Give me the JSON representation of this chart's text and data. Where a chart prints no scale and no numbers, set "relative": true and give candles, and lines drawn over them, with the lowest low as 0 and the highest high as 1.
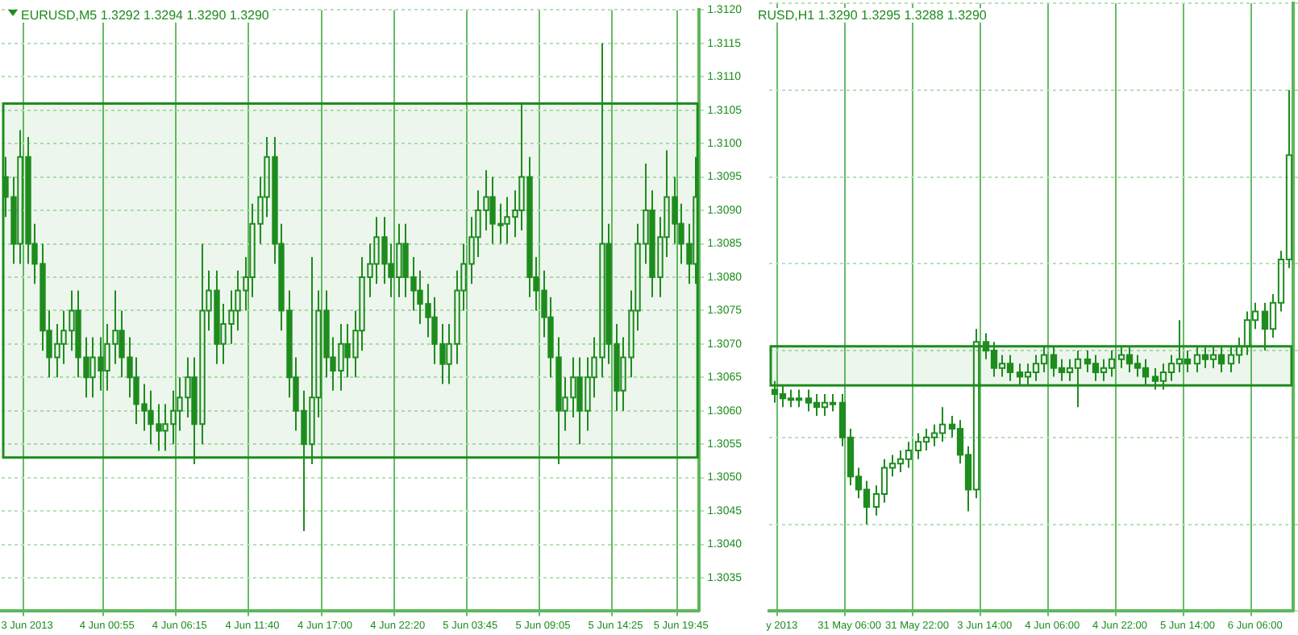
{
  "chart_data": [
    {
      "type": "candlestick",
      "title": "EURUSD,M5 1.3292 1.3294 1.3290 1.3290",
      "color": "#1e8c1e",
      "grid": true,
      "categories": [
        null,
        null,
        null,
        "3 Jun 2013",
        null,
        null,
        null,
        null,
        null,
        null,
        null,
        null,
        null,
        null,
        "4 Jun 00:55",
        null,
        null,
        null,
        null,
        null,
        null,
        null,
        null,
        null,
        "4 Jun 06:15",
        null,
        null,
        null,
        null,
        null,
        null,
        null,
        null,
        null,
        "4 Jun 11:40",
        null,
        null,
        null,
        null,
        null,
        null,
        null,
        null,
        null,
        "4 Jun 17:00",
        null,
        null,
        null,
        null,
        null,
        null,
        null,
        null,
        null,
        "4 Jun 22:20",
        null,
        null,
        null,
        null,
        null,
        null,
        null,
        null,
        null,
        "5 Jun 03:45",
        null,
        null,
        null,
        null,
        null,
        null,
        null,
        null,
        null,
        "5 Jun 09:05",
        null,
        null,
        null,
        null,
        null,
        null,
        null,
        null,
        null,
        "5 Jun 14:25",
        null,
        null,
        null,
        null,
        null,
        null,
        null,
        null,
        "5 Jun 19:45",
        null,
        null
      ],
      "ohlc": [
        [
          1.3095,
          1.3098,
          1.3089,
          1.3092
        ],
        [
          1.3092,
          1.3095,
          1.3082,
          1.3085
        ],
        [
          1.3085,
          1.3102,
          1.3082,
          1.3098
        ],
        [
          1.3098,
          1.3101,
          1.3082,
          1.3085
        ],
        [
          1.3085,
          1.3088,
          1.3079,
          1.3082
        ],
        [
          1.3082,
          1.3085,
          1.3069,
          1.3072
        ],
        [
          1.3072,
          1.3075,
          1.3065,
          1.3068
        ],
        [
          1.3068,
          1.3073,
          1.3065,
          1.307
        ],
        [
          1.307,
          1.3075,
          1.3067,
          1.3072
        ],
        [
          1.3072,
          1.3078,
          1.3069,
          1.3075
        ],
        [
          1.3075,
          1.3078,
          1.3065,
          1.3068
        ],
        [
          1.3068,
          1.3071,
          1.3062,
          1.3065
        ],
        [
          1.3065,
          1.3071,
          1.3062,
          1.3068
        ],
        [
          1.3068,
          1.3071,
          1.3063,
          1.3066
        ],
        [
          1.3066,
          1.3073,
          1.3063,
          1.307
        ],
        [
          1.307,
          1.3078,
          1.3067,
          1.3072
        ],
        [
          1.3072,
          1.3075,
          1.3065,
          1.3068
        ],
        [
          1.3068,
          1.3071,
          1.3062,
          1.3065
        ],
        [
          1.3065,
          1.3068,
          1.3058,
          1.3061
        ],
        [
          1.3061,
          1.3064,
          1.3057,
          1.306
        ],
        [
          1.306,
          1.3063,
          1.3055,
          1.3058
        ],
        [
          1.3058,
          1.3061,
          1.3054,
          1.3057
        ],
        [
          1.3057,
          1.3061,
          1.3054,
          1.3058
        ],
        [
          1.3058,
          1.3063,
          1.3055,
          1.306
        ],
        [
          1.306,
          1.3065,
          1.3057,
          1.3062
        ],
        [
          1.3062,
          1.3068,
          1.3059,
          1.3065
        ],
        [
          1.3065,
          1.3068,
          1.3052,
          1.3058
        ],
        [
          1.3058,
          1.3085,
          1.3055,
          1.3075
        ],
        [
          1.3075,
          1.3081,
          1.3072,
          1.3078
        ],
        [
          1.3078,
          1.3081,
          1.3067,
          1.307
        ],
        [
          1.307,
          1.3076,
          1.3067,
          1.3073
        ],
        [
          1.3073,
          1.3078,
          1.307,
          1.3075
        ],
        [
          1.3075,
          1.3081,
          1.3072,
          1.3078
        ],
        [
          1.3078,
          1.3083,
          1.3075,
          1.308
        ],
        [
          1.308,
          1.3091,
          1.3077,
          1.3088
        ],
        [
          1.3088,
          1.3095,
          1.3085,
          1.3092
        ],
        [
          1.3092,
          1.3101,
          1.3089,
          1.3098
        ],
        [
          1.3098,
          1.3101,
          1.3082,
          1.3085
        ],
        [
          1.3085,
          1.3088,
          1.3072,
          1.3075
        ],
        [
          1.3075,
          1.3078,
          1.3062,
          1.3065
        ],
        [
          1.3065,
          1.3068,
          1.3057,
          1.306
        ],
        [
          1.306,
          1.3063,
          1.3042,
          1.3055
        ],
        [
          1.3055,
          1.3083,
          1.3052,
          1.3062
        ],
        [
          1.3062,
          1.3078,
          1.3059,
          1.3075
        ],
        [
          1.3075,
          1.3078,
          1.3065,
          1.3068
        ],
        [
          1.3068,
          1.3071,
          1.3063,
          1.3066
        ],
        [
          1.3066,
          1.3073,
          1.3063,
          1.307
        ],
        [
          1.307,
          1.3073,
          1.3065,
          1.3068
        ],
        [
          1.3068,
          1.3075,
          1.3065,
          1.3072
        ],
        [
          1.3072,
          1.3083,
          1.3069,
          1.308
        ],
        [
          1.308,
          1.3085,
          1.3077,
          1.3082
        ],
        [
          1.3082,
          1.3089,
          1.3079,
          1.3086
        ],
        [
          1.3086,
          1.3089,
          1.3079,
          1.3082
        ],
        [
          1.3082,
          1.3085,
          1.3077,
          1.308
        ],
        [
          1.308,
          1.3088,
          1.3077,
          1.3085
        ],
        [
          1.3085,
          1.3088,
          1.3077,
          1.308
        ],
        [
          1.308,
          1.3083,
          1.3075,
          1.3078
        ],
        [
          1.3078,
          1.3081,
          1.3073,
          1.3076
        ],
        [
          1.3076,
          1.3079,
          1.3071,
          1.3074
        ],
        [
          1.3074,
          1.3077,
          1.3067,
          1.307
        ],
        [
          1.307,
          1.3073,
          1.3064,
          1.3067
        ],
        [
          1.3067,
          1.3073,
          1.3064,
          1.307
        ],
        [
          1.307,
          1.3081,
          1.3067,
          1.3078
        ],
        [
          1.3078,
          1.3085,
          1.3075,
          1.3082
        ],
        [
          1.3082,
          1.3089,
          1.3079,
          1.3086
        ],
        [
          1.3086,
          1.3093,
          1.3083,
          1.309
        ],
        [
          1.309,
          1.3096,
          1.3087,
          1.3092
        ],
        [
          1.3092,
          1.3095,
          1.3085,
          1.3088
        ],
        [
          1.3088,
          1.3091,
          1.3085,
          1.3088
        ],
        [
          1.3088,
          1.3092,
          1.3085,
          1.3089
        ],
        [
          1.3089,
          1.3093,
          1.3086,
          1.309
        ],
        [
          1.309,
          1.3106,
          1.3087,
          1.3095
        ],
        [
          1.3095,
          1.3098,
          1.3077,
          1.308
        ],
        [
          1.308,
          1.3083,
          1.3075,
          1.3078
        ],
        [
          1.3078,
          1.3081,
          1.3071,
          1.3074
        ],
        [
          1.3074,
          1.3077,
          1.3065,
          1.3068
        ],
        [
          1.3068,
          1.3071,
          1.3052,
          1.306
        ],
        [
          1.306,
          1.3065,
          1.3057,
          1.3062
        ],
        [
          1.3062,
          1.3068,
          1.3059,
          1.3065
        ],
        [
          1.3065,
          1.3068,
          1.3055,
          1.306
        ],
        [
          1.306,
          1.3068,
          1.3057,
          1.3065
        ],
        [
          1.3065,
          1.3071,
          1.3062,
          1.3068
        ],
        [
          1.3068,
          1.3115,
          1.3065,
          1.3085
        ],
        [
          1.3085,
          1.3088,
          1.3067,
          1.307
        ],
        [
          1.307,
          1.3073,
          1.306,
          1.3063
        ],
        [
          1.3063,
          1.3071,
          1.306,
          1.3068
        ],
        [
          1.3068,
          1.3078,
          1.3065,
          1.3075
        ],
        [
          1.3075,
          1.3088,
          1.3072,
          1.3085
        ],
        [
          1.3085,
          1.3097,
          1.3082,
          1.309
        ],
        [
          1.309,
          1.3093,
          1.3077,
          1.308
        ],
        [
          1.308,
          1.3089,
          1.3077,
          1.3086
        ],
        [
          1.3086,
          1.3099,
          1.3083,
          1.3092
        ],
        [
          1.3092,
          1.3095,
          1.3085,
          1.3088
        ],
        [
          1.3088,
          1.3091,
          1.3082,
          1.3085
        ],
        [
          1.3085,
          1.3088,
          1.3079,
          1.3082
        ],
        [
          1.3082,
          1.3098,
          1.3079,
          1.3092
        ]
      ],
      "ylim": [
        1.303,
        1.312
      ],
      "yticks": [
        1.3035,
        {
          "value": 1.304,
          "label": "1.3040"
        },
        1.3045,
        {
          "value": 1.305,
          "label": "1.3050"
        },
        1.3055,
        {
          "value": 1.306,
          "label": "1.3060"
        },
        1.3065,
        {
          "value": 1.307,
          "label": "1.3070"
        },
        1.3075,
        {
          "value": 1.308,
          "label": "1.3080"
        },
        1.3085,
        {
          "value": 1.309,
          "label": "1.3090"
        },
        1.3095,
        {
          "value": 1.31,
          "label": "1.3100"
        },
        1.3105,
        {
          "value": 1.311,
          "label": "1.3110"
        },
        1.3115,
        {
          "value": 1.312,
          "label": "1.3120"
        }
      ],
      "bands": [
        {
          "axis": "y",
          "from": 1.3053,
          "to": 1.3106,
          "color": "#1e8c1e"
        }
      ]
    },
    {
      "type": "candlestick",
      "title": "RUSD,H1 1.3290 1.3295 1.3288 1.3290",
      "color": "#1e8c1e",
      "grid": true,
      "relative": true,
      "categories": [
        null,
        "y 2013",
        null,
        null,
        null,
        null,
        null,
        null,
        null,
        "31 May 06:00",
        null,
        null,
        null,
        null,
        null,
        null,
        null,
        "31 May 22:00",
        null,
        null,
        null,
        null,
        null,
        null,
        null,
        "3 Jun 14:00",
        null,
        null,
        null,
        null,
        null,
        null,
        null,
        "4 Jun 06:00",
        null,
        null,
        null,
        null,
        null,
        null,
        null,
        "4 Jun 22:00",
        null,
        null,
        null,
        null,
        null,
        null,
        null,
        "5 Jun 14:00",
        null,
        null,
        null,
        null,
        null,
        null,
        null,
        "6 Jun 06:00",
        null,
        null,
        null,
        null
      ],
      "ohlc": [
        [
          0.31,
          0.33,
          0.28,
          0.3
        ],
        [
          0.3,
          0.32,
          0.27,
          0.29
        ],
        [
          0.29,
          0.31,
          0.27,
          0.29
        ],
        [
          0.29,
          0.31,
          0.27,
          0.29
        ],
        [
          0.29,
          0.31,
          0.26,
          0.28
        ],
        [
          0.28,
          0.3,
          0.25,
          0.27
        ],
        [
          0.27,
          0.3,
          0.25,
          0.28
        ],
        [
          0.28,
          0.3,
          0.26,
          0.28
        ],
        [
          0.28,
          0.3,
          0.18,
          0.2
        ],
        [
          0.2,
          0.22,
          0.09,
          0.11
        ],
        [
          0.11,
          0.13,
          0.06,
          0.08
        ],
        [
          0.08,
          0.1,
          0,
          0.04
        ],
        [
          0.04,
          0.09,
          0.02,
          0.07
        ],
        [
          0.07,
          0.15,
          0.05,
          0.13
        ],
        [
          0.13,
          0.16,
          0.11,
          0.14
        ],
        [
          0.14,
          0.17,
          0.12,
          0.15
        ],
        [
          0.15,
          0.19,
          0.13,
          0.17
        ],
        [
          0.17,
          0.21,
          0.15,
          0.19
        ],
        [
          0.19,
          0.22,
          0.17,
          0.2
        ],
        [
          0.2,
          0.23,
          0.18,
          0.21
        ],
        [
          0.21,
          0.27,
          0.19,
          0.23
        ],
        [
          0.23,
          0.25,
          0.2,
          0.22
        ],
        [
          0.22,
          0.24,
          0.14,
          0.16
        ],
        [
          0.16,
          0.18,
          0.03,
          0.08
        ],
        [
          0.08,
          0.45,
          0.06,
          0.42
        ],
        [
          0.42,
          0.44,
          0.38,
          0.4
        ],
        [
          0.4,
          0.42,
          0.34,
          0.36
        ],
        [
          0.36,
          0.39,
          0.34,
          0.37
        ],
        [
          0.37,
          0.39,
          0.33,
          0.35
        ],
        [
          0.35,
          0.37,
          0.32,
          0.34
        ],
        [
          0.34,
          0.37,
          0.32,
          0.35
        ],
        [
          0.35,
          0.39,
          0.33,
          0.37
        ],
        [
          0.37,
          0.41,
          0.35,
          0.39
        ],
        [
          0.39,
          0.41,
          0.34,
          0.36
        ],
        [
          0.36,
          0.38,
          0.33,
          0.35
        ],
        [
          0.35,
          0.38,
          0.33,
          0.36
        ],
        [
          0.36,
          0.4,
          0.27,
          0.38
        ],
        [
          0.38,
          0.4,
          0.35,
          0.37
        ],
        [
          0.37,
          0.39,
          0.33,
          0.35
        ],
        [
          0.35,
          0.38,
          0.33,
          0.36
        ],
        [
          0.36,
          0.4,
          0.34,
          0.38
        ],
        [
          0.38,
          0.41,
          0.36,
          0.39
        ],
        [
          0.39,
          0.41,
          0.35,
          0.37
        ],
        [
          0.37,
          0.39,
          0.34,
          0.36
        ],
        [
          0.36,
          0.38,
          0.32,
          0.34
        ],
        [
          0.34,
          0.36,
          0.31,
          0.33
        ],
        [
          0.33,
          0.37,
          0.31,
          0.35
        ],
        [
          0.35,
          0.39,
          0.33,
          0.37
        ],
        [
          0.37,
          0.47,
          0.35,
          0.38
        ],
        [
          0.38,
          0.4,
          0.35,
          0.37
        ],
        [
          0.37,
          0.41,
          0.35,
          0.39
        ],
        [
          0.39,
          0.41,
          0.36,
          0.38
        ],
        [
          0.38,
          0.41,
          0.36,
          0.39
        ],
        [
          0.39,
          0.41,
          0.35,
          0.37
        ],
        [
          0.37,
          0.41,
          0.35,
          0.39
        ],
        [
          0.39,
          0.43,
          0.37,
          0.41
        ],
        [
          0.41,
          0.49,
          0.39,
          0.47
        ],
        [
          0.47,
          0.51,
          0.45,
          0.49
        ],
        [
          0.49,
          0.51,
          0.4,
          0.45
        ],
        [
          0.45,
          0.53,
          0.43,
          0.51
        ],
        [
          0.51,
          0.63,
          0.49,
          0.61
        ],
        [
          0.61,
          1,
          0.59,
          0.85
        ]
      ],
      "bands": [
        {
          "axis": "y",
          "from": 0.32,
          "to": 0.41,
          "color": "#1e8c1e"
        }
      ]
    }
  ]
}
